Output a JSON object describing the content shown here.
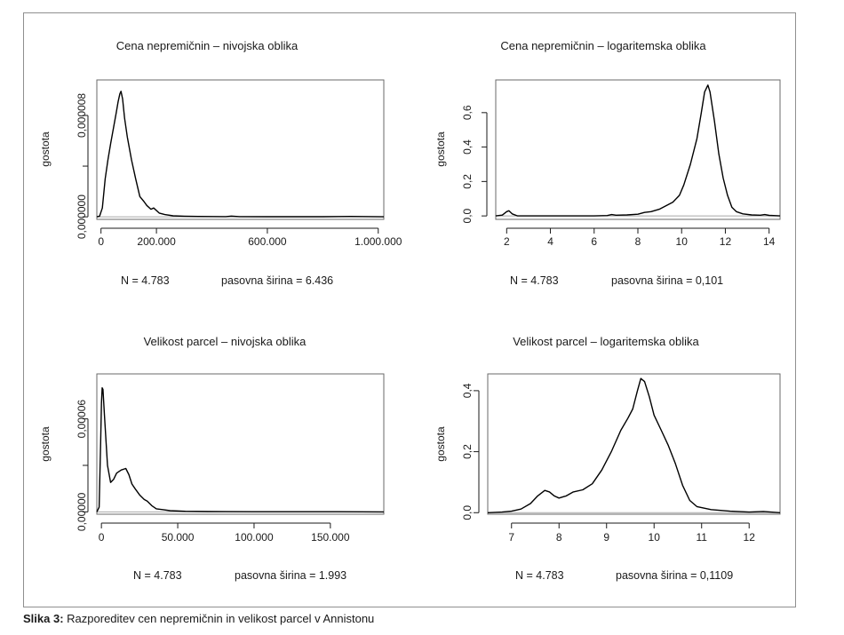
{
  "caption": {
    "label": "Slika 3:",
    "text": "Razporeditev cen nepremičnin in velikost parcel v Annistonu"
  },
  "chart_data": [
    {
      "type": "line",
      "title": "Cena nepremičnin – nivojska oblika",
      "ylabel": "gostota",
      "xlim": [
        -15000,
        1020000
      ],
      "ylim": [
        -2e-07,
        1.08e-05
      ],
      "x_ticks": [
        0,
        200000,
        600000,
        1000000
      ],
      "x_tick_labels": [
        "0",
        "200.000",
        "600.000",
        "1.000.000"
      ],
      "y_ticks": [
        0,
        4e-06,
        8e-06
      ],
      "y_tick_labels": [
        "0,000000",
        "",
        "0,000008"
      ],
      "info_n": "N = 4.783",
      "info_bw": "pasovna širina = 6.436",
      "x": [
        -15000,
        -5000,
        5000,
        15000,
        25000,
        35000,
        45000,
        55000,
        62000,
        68000,
        72000,
        78000,
        85000,
        95000,
        110000,
        125000,
        140000,
        155000,
        165000,
        180000,
        190000,
        210000,
        230000,
        260000,
        300000,
        350000,
        450000,
        470000,
        500000,
        600000,
        700000,
        800000,
        900000,
        1020000
      ],
      "y": [
        0,
        5e-08,
        7e-07,
        3e-06,
        4.5e-06,
        5.8e-06,
        7e-06,
        8.2e-06,
        9.1e-06,
        9.7e-06,
        9.9e-06,
        9.3e-06,
        7.8e-06,
        6.3e-06,
        4.5e-06,
        3e-06,
        1.6e-06,
        1.2e-06,
        9e-07,
        6e-07,
        7e-07,
        3e-07,
        1.8e-07,
        8e-08,
        5e-08,
        3e-08,
        2e-08,
        6e-08,
        2e-08,
        1e-08,
        1e-08,
        1e-08,
        3e-08,
        0
      ]
    },
    {
      "type": "line",
      "title": "Cena nepremičnin – logaritemska oblika",
      "ylabel": "gostota",
      "xlim": [
        1.5,
        14.5
      ],
      "ylim": [
        -0.02,
        0.79
      ],
      "x_ticks": [
        2,
        4,
        6,
        8,
        10,
        12,
        14
      ],
      "x_tick_labels": [
        "2",
        "4",
        "6",
        "8",
        "10",
        "12",
        "14"
      ],
      "y_ticks": [
        0,
        0.2,
        0.4,
        0.6
      ],
      "y_tick_labels": [
        "0,0",
        "0,2",
        "0,4",
        "0,6"
      ],
      "info_n": "N = 4.783",
      "info_bw": "pasovna širina = 0,101",
      "x": [
        1.5,
        1.8,
        2.0,
        2.1,
        2.25,
        2.5,
        4,
        6,
        6.6,
        6.8,
        7.0,
        7.5,
        8.0,
        8.3,
        8.6,
        9.0,
        9.3,
        9.6,
        9.9,
        10.1,
        10.4,
        10.7,
        10.9,
        11.05,
        11.2,
        11.3,
        11.5,
        11.7,
        11.9,
        12.1,
        12.3,
        12.5,
        12.8,
        13.2,
        13.6,
        13.8,
        14.0,
        14.5
      ],
      "y": [
        0,
        0.005,
        0.025,
        0.03,
        0.012,
        0,
        0,
        0,
        0.002,
        0.008,
        0.004,
        0.006,
        0.01,
        0.02,
        0.025,
        0.04,
        0.06,
        0.08,
        0.12,
        0.18,
        0.3,
        0.45,
        0.6,
        0.72,
        0.76,
        0.72,
        0.55,
        0.36,
        0.22,
        0.12,
        0.05,
        0.025,
        0.012,
        0.006,
        0.004,
        0.008,
        0.003,
        0
      ]
    },
    {
      "type": "line",
      "title": "Velikost parcel – nivojska oblika",
      "ylabel": "gostota",
      "xlim": [
        -3000,
        185000
      ],
      "ylim": [
        -1.5e-06,
        8.9e-05
      ],
      "x_ticks": [
        0,
        50000,
        100000,
        150000
      ],
      "x_tick_labels": [
        "0",
        "50.000",
        "100.000",
        "150.000"
      ],
      "y_ticks": [
        0,
        3e-05,
        6e-05
      ],
      "y_tick_labels": [
        "0,00000",
        "",
        "0,00006"
      ],
      "info_n": "N = 4.783",
      "info_bw": "pasovna širina = 1.993",
      "x": [
        -3000,
        -1500,
        -500,
        0,
        500,
        1000,
        2000,
        4000,
        6000,
        8000,
        10000,
        13000,
        16000,
        18000,
        20000,
        22000,
        25000,
        28000,
        30000,
        33000,
        36000,
        40000,
        45000,
        55000,
        70000,
        100000,
        150000,
        185000
      ],
      "y": [
        0,
        3e-06,
        4.5e-05,
        7e-05,
        8e-05,
        7.9e-05,
        6.2e-05,
        3e-05,
        1.9e-05,
        2.1e-05,
        2.5e-05,
        2.7e-05,
        2.8e-05,
        2.4e-05,
        1.8e-05,
        1.5e-05,
        1.1e-05,
        8e-06,
        7e-06,
        4e-06,
        2e-06,
        1.5e-06,
        8e-07,
        4e-07,
        2e-07,
        1e-07,
        1e-07,
        0
      ]
    },
    {
      "type": "line",
      "title": "Velikost parcel – logaritemska oblika",
      "ylabel": "gostota",
      "xlim": [
        6.5,
        12.65
      ],
      "ylim": [
        -0.005,
        0.455
      ],
      "x_ticks": [
        7,
        8,
        9,
        10,
        11,
        12
      ],
      "x_tick_labels": [
        "7",
        "8",
        "9",
        "10",
        "11",
        "12"
      ],
      "y_ticks": [
        0,
        0.2,
        0.4
      ],
      "y_tick_labels": [
        "0,0",
        "0,2",
        "0,4"
      ],
      "info_n": "N = 4.783",
      "info_bw": "pasovna širina = 0,1109",
      "x": [
        6.5,
        6.8,
        7.0,
        7.2,
        7.4,
        7.55,
        7.7,
        7.8,
        7.9,
        8.0,
        8.15,
        8.3,
        8.5,
        8.7,
        8.9,
        9.1,
        9.3,
        9.45,
        9.55,
        9.65,
        9.72,
        9.8,
        9.9,
        10.0,
        10.15,
        10.3,
        10.45,
        10.6,
        10.75,
        10.9,
        11.2,
        11.6,
        12.0,
        12.3,
        12.65
      ],
      "y": [
        0,
        0.002,
        0.005,
        0.012,
        0.03,
        0.055,
        0.073,
        0.068,
        0.055,
        0.048,
        0.055,
        0.068,
        0.075,
        0.095,
        0.14,
        0.2,
        0.27,
        0.31,
        0.34,
        0.4,
        0.44,
        0.43,
        0.38,
        0.32,
        0.27,
        0.22,
        0.16,
        0.09,
        0.04,
        0.02,
        0.01,
        0.005,
        0.002,
        0.004,
        0
      ]
    }
  ]
}
